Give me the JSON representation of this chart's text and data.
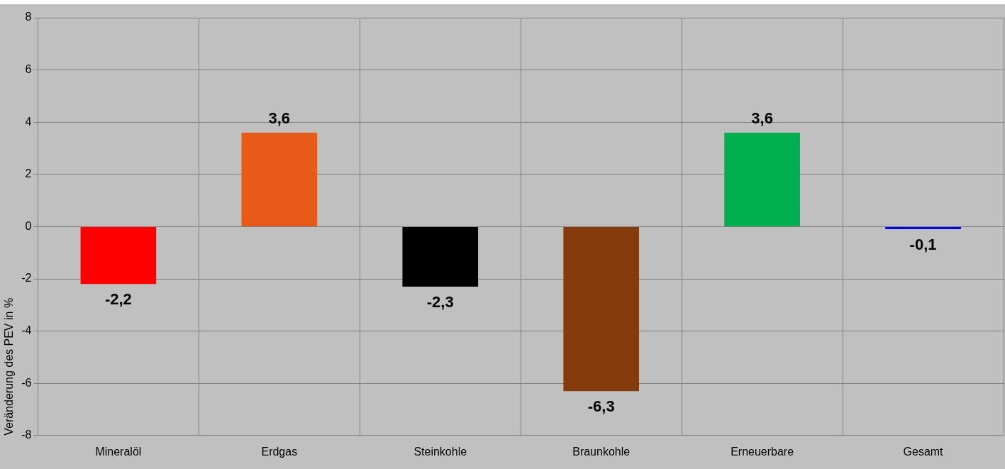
{
  "chart_data": {
    "type": "bar",
    "ylabel": "Veränderung des PEV in %",
    "categories": [
      "Mineralöl",
      "Erdgas",
      "Steinkohle",
      "Braunkohle",
      "Erneuerbare",
      "Gesamt"
    ],
    "values": [
      -2.2,
      3.6,
      -2.3,
      -6.3,
      3.6,
      -0.1
    ],
    "colors": [
      "#ff0000",
      "#e85a17",
      "#000000",
      "#843c0c",
      "#00b050",
      "#0000ff"
    ],
    "value_labels": [
      "-2,2",
      "3,6",
      "-2,3",
      "-6,3",
      "3,6",
      "-0,1"
    ],
    "ylim": [
      -8,
      8
    ],
    "yticks": [
      -8,
      -6,
      -4,
      -2,
      0,
      2,
      4,
      6,
      8
    ],
    "grid": true,
    "legend": false
  }
}
